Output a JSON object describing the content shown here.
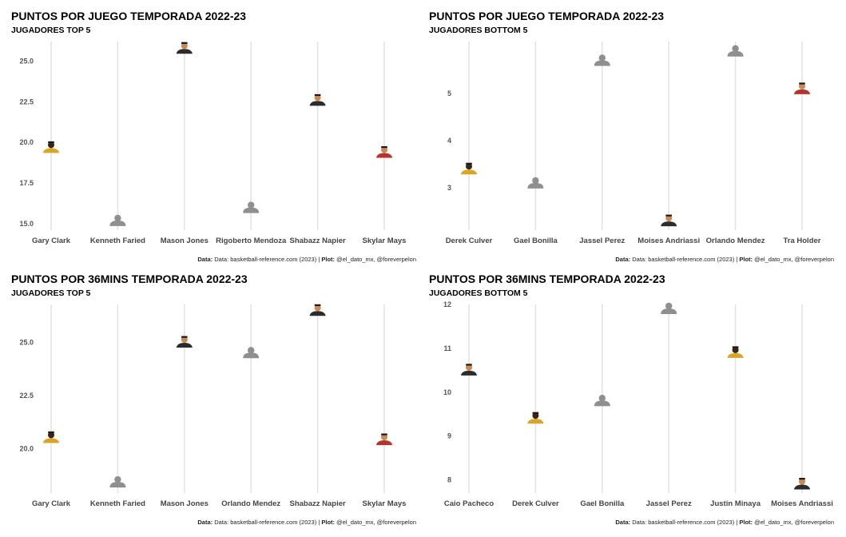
{
  "caption": {
    "data_label": "Data:",
    "data_text": "Data: basketball-reference.com (2023) |",
    "plot_label": "Plot:",
    "plot_text": "@el_dato_mx, @foreverpelon"
  },
  "colors": {
    "gridline": "#e3e3e3",
    "placeholder": "#8f8f8f",
    "skin_dark": "#3a2418",
    "skin_tan": "#c98a55",
    "jersey_dark": "#2c2c2c",
    "jersey_gold": "#d8a524",
    "jersey_red": "#b5352e",
    "jersey_white": "#f4f4f4"
  },
  "chart_data": [
    {
      "type": "scatter",
      "title": "PUNTOS POR JUEGO TEMPORADA 2022-23",
      "subtitle": "JUGADORES TOP 5",
      "categories": [
        "Gary Clark",
        "Kenneth Faried",
        "Mason Jones",
        "Rigoberto Mendoza",
        "Shabazz Napier",
        "Skylar Mays"
      ],
      "values": [
        19.4,
        14.9,
        25.5,
        15.7,
        22.3,
        19.1
      ],
      "markers": [
        "photo-dark",
        "placeholder",
        "photo-tan",
        "placeholder",
        "photo-tan",
        "photo-red"
      ],
      "ylim": [
        14.6,
        26.2
      ],
      "yticks": [
        "15.0",
        "17.5",
        "20.0",
        "22.5",
        "25.0"
      ],
      "grid": true
    },
    {
      "type": "scatter",
      "title": "PUNTOS POR JUEGO TEMPORADA 2022-23",
      "subtitle": "JUGADORES BOTTOM 5",
      "categories": [
        "Derek Culver",
        "Gael Bonilla",
        "Jassel Perez",
        "Moises Andriassi",
        "Orlando Mendez",
        "Tra Holder"
      ],
      "values": [
        3.3,
        3.0,
        5.6,
        2.2,
        5.8,
        5.0
      ],
      "markers": [
        "photo-dark",
        "placeholder",
        "placeholder",
        "photo-tan",
        "placeholder",
        "photo-red"
      ],
      "ylim": [
        2.1,
        6.1
      ],
      "yticks": [
        "3",
        "4",
        "5"
      ],
      "grid": true
    },
    {
      "type": "scatter",
      "title": "PUNTOS POR 36MINS TEMPORADA 2022-23",
      "subtitle": "JUGADORES TOP 5",
      "categories": [
        "Gary Clark",
        "Kenneth Faried",
        "Mason Jones",
        "Orlando Mendez",
        "Shabazz Napier",
        "Skylar Mays"
      ],
      "values": [
        20.3,
        18.2,
        24.8,
        24.3,
        26.3,
        20.2
      ],
      "markers": [
        "photo-dark",
        "placeholder",
        "photo-tan",
        "placeholder",
        "photo-tan",
        "photo-red"
      ],
      "ylim": [
        17.9,
        26.8
      ],
      "yticks": [
        "20.0",
        "22.5",
        "25.0"
      ],
      "grid": true
    },
    {
      "type": "scatter",
      "title": "PUNTOS POR 36MINS TEMPORADA 2022-23",
      "subtitle": "JUGADORES BOTTOM 5",
      "categories": [
        "Caio Pacheco",
        "Derek Culver",
        "Gael Bonilla",
        "Jassel Perez",
        "Justin Minaya",
        "Moises Andriassi"
      ],
      "values": [
        10.4,
        9.3,
        9.7,
        11.8,
        10.8,
        7.8
      ],
      "markers": [
        "photo-tan",
        "photo-dark",
        "placeholder",
        "placeholder",
        "photo-dark",
        "photo-tan"
      ],
      "ylim": [
        7.7,
        12.0
      ],
      "yticks": [
        "8",
        "9",
        "10",
        "11",
        "12"
      ],
      "grid": true
    }
  ]
}
